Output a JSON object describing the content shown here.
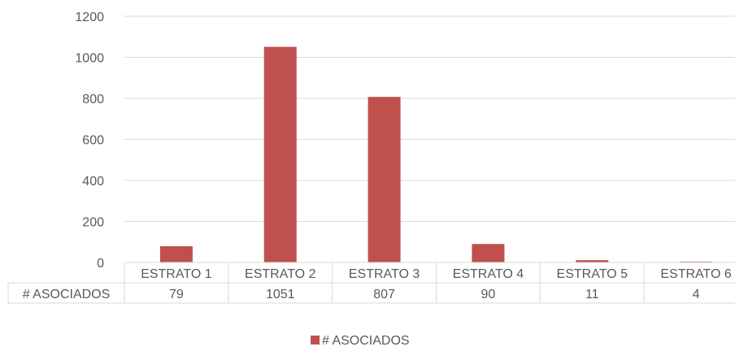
{
  "chart_data": {
    "type": "bar",
    "title": "",
    "xlabel": "",
    "ylabel": "",
    "categories": [
      "ESTRATO 1",
      "ESTRATO 2",
      "ESTRATO 3",
      "ESTRATO 4",
      "ESTRATO 5",
      "ESTRATO 6"
    ],
    "series": [
      {
        "name": "# ASOCIADOS",
        "values": [
          79,
          1051,
          807,
          90,
          11,
          4
        ],
        "color": "#C0504D"
      }
    ],
    "ylim": [
      0,
      1200
    ],
    "yticks": [
      0,
      200,
      400,
      600,
      800,
      1000,
      1200
    ],
    "grid": true,
    "data_table": true,
    "legend": {
      "position": "bottom",
      "entries": [
        "# ASOCIADOS"
      ]
    }
  }
}
